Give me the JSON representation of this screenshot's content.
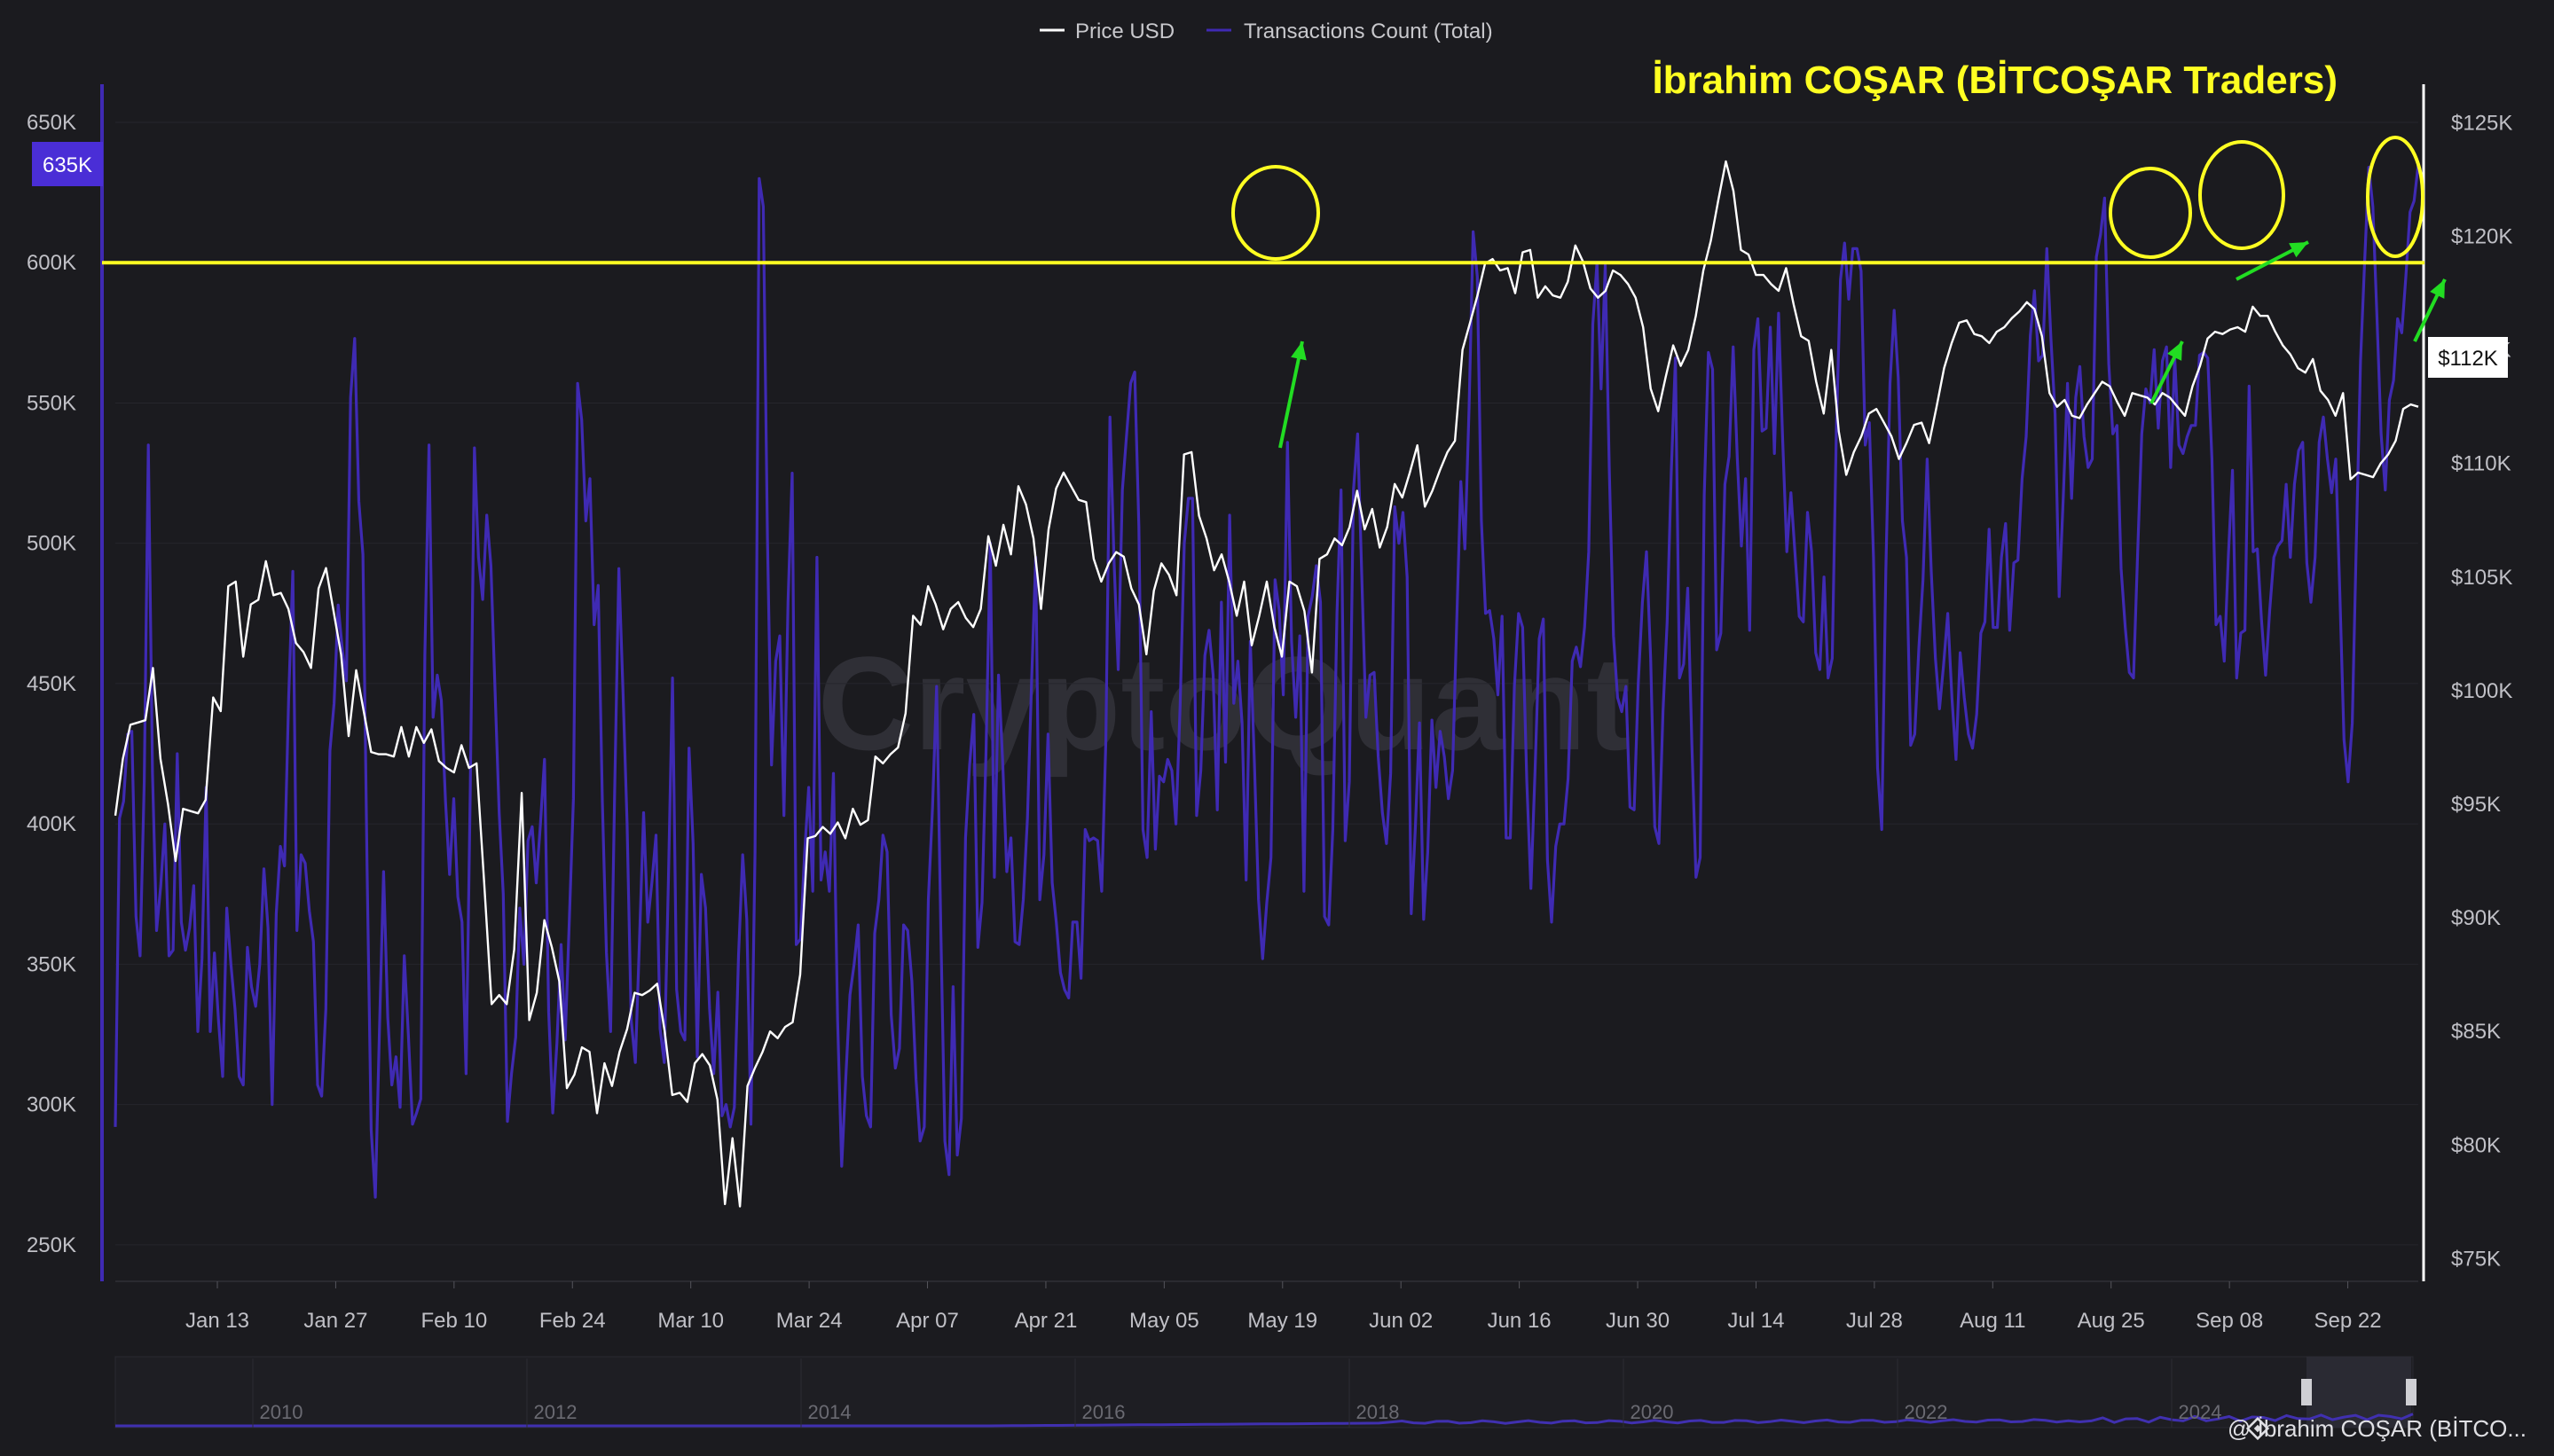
{
  "legend": {
    "price_label": "Price USD",
    "tx_label": "Transactions Count (Total)"
  },
  "annotation_title": "İbrahim COŞAR (BİTCOŞAR Traders)",
  "watermark": "CryptoQuant",
  "credit": "@ İbrahim COŞAR (BİTCO...",
  "badges": {
    "left_value": "635K",
    "right_value": "$112K"
  },
  "colors": {
    "background": "#1b1b1f",
    "tx_line": "#3f2ab3",
    "price_line": "#ffffff",
    "annotation": "#ffff22",
    "arrow": "#22dd22",
    "badge_left": "#4a2ed6"
  },
  "chart_data": {
    "type": "line",
    "x_ticks": [
      "Jan 13",
      "Jan 27",
      "Feb 10",
      "Feb 24",
      "Mar 10",
      "Mar 24",
      "Apr 07",
      "Apr 21",
      "May 05",
      "May 19",
      "Jun 02",
      "Jun 16",
      "Jun 30",
      "Jul 14",
      "Jul 28",
      "Aug 11",
      "Aug 25",
      "Sep 08",
      "Sep 22"
    ],
    "y_left": {
      "ticks": [
        "250K",
        "300K",
        "350K",
        "400K",
        "450K",
        "500K",
        "550K",
        "600K",
        "650K"
      ],
      "range": [
        237000,
        662000
      ]
    },
    "y_right": {
      "ticks": [
        "$75K",
        "$80K",
        "$85K",
        "$90K",
        "$95K",
        "$100K",
        "$105K",
        "$110K",
        "$115K",
        "$120K",
        "$125K"
      ],
      "range": [
        74000,
        126500
      ]
    },
    "horizontal_line": {
      "axis": "left",
      "value": 600000
    },
    "series": [
      {
        "name": "Transactions Count (Total)",
        "axis": "left",
        "values": [
          292000,
          402000,
          408000,
          432000,
          433000,
          367000,
          353000,
          415000,
          535000,
          418000,
          362000,
          378000,
          400000,
          353000,
          355000,
          425000,
          365000,
          355000,
          363000,
          378000,
          326000,
          352000,
          413000,
          326000,
          354000,
          330000,
          310000,
          370000,
          350000,
          334000,
          310000,
          307000,
          356000,
          342000,
          335000,
          350000,
          384000,
          363000,
          300000,
          368000,
          392000,
          385000,
          445000,
          490000,
          362000,
          389000,
          386000,
          369000,
          358000,
          307000,
          303000,
          334000,
          426000,
          443000,
          478000,
          462000,
          451000,
          552000,
          573000,
          515000,
          496000,
          384000,
          291000,
          267000,
          326000,
          383000,
          331000,
          307000,
          317000,
          299000,
          353000,
          325000,
          293000,
          297000,
          302000,
          460000,
          535000,
          438000,
          453000,
          444000,
          408000,
          382000,
          409000,
          374000,
          365000,
          311000,
          412000,
          534000,
          495000,
          480000,
          510000,
          492000,
          448000,
          404000,
          375000,
          294000,
          311000,
          324000,
          370000,
          350000,
          394000,
          399000,
          379000,
          400000,
          423000,
          333000,
          297000,
          322000,
          357000,
          323000,
          366000,
          409000,
          557000,
          544000,
          508000,
          523000,
          471000,
          485000,
          408000,
          354000,
          326000,
          412000,
          491000,
          448000,
          400000,
          330000,
          315000,
          358000,
          404000,
          365000,
          379000,
          396000,
          327000,
          315000,
          379000,
          452000,
          341000,
          326000,
          323000,
          427000,
          393000,
          317000,
          382000,
          370000,
          334000,
          311000,
          340000,
          296000,
          300000,
          292000,
          299000,
          353000,
          389000,
          366000,
          293000,
          390000,
          630000,
          620000,
          502000,
          421000,
          458000,
          467000,
          403000,
          479000,
          525000,
          357000,
          359000,
          389000,
          413000,
          376000,
          495000,
          380000,
          390000,
          376000,
          418000,
          330000,
          278000,
          310000,
          339000,
          350000,
          364000,
          310000,
          296000,
          292000,
          361000,
          373000,
          396000,
          390000,
          332000,
          313000,
          320000,
          364000,
          362000,
          344000,
          309000,
          287000,
          292000,
          373000,
          406000,
          449000,
          363000,
          287000,
          275000,
          342000,
          282000,
          295000,
          395000,
          421000,
          439000,
          356000,
          372000,
          427000,
          500000,
          381000,
          453000,
          422000,
          383000,
          395000,
          358000,
          357000,
          373000,
          402000,
          450000,
          495000,
          373000,
          389000,
          432000,
          379000,
          365000,
          347000,
          341000,
          338000,
          365000,
          365000,
          345000,
          398000,
          394000,
          395000,
          394000,
          376000,
          430000,
          545000,
          493000,
          455000,
          519000,
          538000,
          557000,
          561000,
          506000,
          398000,
          388000,
          440000,
          391000,
          417000,
          415000,
          423000,
          419000,
          400000,
          442000,
          500000,
          516000,
          516000,
          403000,
          419000,
          460000,
          469000,
          453000,
          405000,
          479000,
          422000,
          510000,
          443000,
          458000,
          436000,
          380000,
          465000,
          422000,
          373000,
          352000,
          372000,
          388000,
          487000,
          476000,
          446000,
          536000,
          465000,
          438000,
          467000,
          376000,
          474000,
          481000,
          492000,
          479000,
          367000,
          364000,
          398000,
          475000,
          519000,
          394000,
          415000,
          519000,
          539000,
          489000,
          438000,
          453000,
          454000,
          424000,
          404000,
          393000,
          418000,
          513000,
          500000,
          511000,
          488000,
          368000,
          399000,
          436000,
          366000,
          390000,
          437000,
          413000,
          433000,
          424000,
          409000,
          419000,
          471000,
          522000,
          498000,
          548000,
          611000,
          595000,
          508000,
          475000,
          476000,
          466000,
          446000,
          474000,
          395000,
          395000,
          449000,
          475000,
          470000,
          415000,
          377000,
          419000,
          466000,
          473000,
          387000,
          365000,
          392000,
          400000,
          400000,
          416000,
          458000,
          463000,
          456000,
          470000,
          497000,
          578000,
          600000,
          555000,
          599000,
          526000,
          467000,
          445000,
          440000,
          449000,
          406000,
          405000,
          450000,
          479000,
          497000,
          459000,
          399000,
          393000,
          440000,
          472000,
          525000,
          566000,
          452000,
          457000,
          484000,
          428000,
          381000,
          388000,
          517000,
          568000,
          562000,
          462000,
          468000,
          521000,
          531000,
          570000,
          530000,
          499000,
          523000,
          469000,
          569000,
          580000,
          540000,
          541000,
          577000,
          532000,
          582000,
          537000,
          497000,
          518000,
          496000,
          474000,
          472000,
          511000,
          497000,
          461000,
          455000,
          488000,
          452000,
          459000,
          540000,
          594000,
          607000,
          587000,
          605000,
          605000,
          597000,
          535000,
          543000,
          495000,
          420000,
          398000,
          490000,
          557000,
          583000,
          559000,
          508000,
          495000,
          428000,
          432000,
          463000,
          487000,
          530000,
          490000,
          459000,
          441000,
          457000,
          475000,
          445000,
          423000,
          461000,
          445000,
          432000,
          427000,
          439000,
          468000,
          472000,
          505000,
          470000,
          470000,
          495000,
          507000,
          469000,
          493000,
          494000,
          523000,
          538000,
          574000,
          590000,
          565000,
          567000,
          605000,
          573000,
          546000,
          481000,
          517000,
          557000,
          516000,
          552000,
          563000,
          538000,
          527000,
          530000,
          602000,
          610000,
          623000,
          564000,
          539000,
          542000,
          491000,
          470000,
          454000,
          452000,
          496000,
          539000,
          555000,
          550000,
          569000,
          541000,
          565000,
          570000,
          527000,
          566000,
          535000,
          532000,
          538000,
          542000,
          542000,
          567000,
          568000,
          566000,
          530000,
          471000,
          474000,
          458000,
          496000,
          526000,
          452000,
          468000,
          469000,
          556000,
          497000,
          498000,
          473000,
          453000,
          476000,
          495000,
          499000,
          501000,
          521000,
          495000,
          521000,
          533000,
          536000,
          493000,
          479000,
          495000,
          536000,
          545000,
          530000,
          518000,
          530000,
          482000,
          430000,
          415000,
          436000,
          501000,
          565000,
          600000,
          634000,
          620000,
          580000,
          539000,
          519000,
          551000,
          558000,
          580000,
          575000,
          595000,
          618000,
          622000,
          635000
        ]
      },
      {
        "name": "Price USD",
        "axis": "right",
        "values": [
          94500,
          97000,
          98500,
          98600,
          98700,
          101000,
          97000,
          95000,
          92500,
          94800,
          94700,
          94600,
          95200,
          99700,
          99100,
          104600,
          104800,
          101500,
          103800,
          104000,
          105700,
          104200,
          104300,
          103600,
          102100,
          101700,
          101000,
          104500,
          105400,
          103500,
          101600,
          98000,
          100900,
          99100,
          97300,
          97200,
          97200,
          97100,
          98400,
          97100,
          98400,
          97700,
          98300,
          96900,
          96600,
          96400,
          97600,
          96600,
          96800,
          91600,
          86200,
          86600,
          86200,
          88600,
          95500,
          85500,
          86700,
          89900,
          88700,
          87200,
          82500,
          83100,
          84300,
          84100,
          81400,
          83600,
          82600,
          84100,
          85100,
          86700,
          86600,
          86800,
          87100,
          85000,
          82200,
          82300,
          81900,
          83600,
          84000,
          83500,
          82000,
          77400,
          80300,
          77300,
          82600,
          83400,
          84100,
          85000,
          84700,
          85200,
          85400,
          87500,
          93500,
          93600,
          94000,
          93700,
          94200,
          93500,
          94800,
          94100,
          94300,
          97100,
          96800,
          97200,
          97500,
          99000,
          103300,
          102900,
          104600,
          103800,
          102700,
          103600,
          103900,
          103200,
          102800,
          103600,
          106800,
          105500,
          107300,
          106000,
          109000,
          108200,
          106700,
          103600,
          107100,
          108900,
          109600,
          109000,
          108400,
          108300,
          105800,
          104800,
          105600,
          106100,
          105900,
          104500,
          103800,
          101600,
          104400,
          105600,
          105100,
          104200,
          110400,
          110500,
          107700,
          106700,
          105300,
          106000,
          104800,
          103300,
          104800,
          102000,
          103300,
          104800,
          102800,
          101500,
          104800,
          104600,
          103500,
          100800,
          105800,
          106000,
          106700,
          106400,
          107200,
          108800,
          107100,
          108000,
          106300,
          107200,
          109100,
          108500,
          109600,
          110800,
          108100,
          108800,
          109700,
          110500,
          111000,
          115000,
          116200,
          117400,
          118800,
          119000,
          118500,
          118600,
          117500,
          119300,
          119400,
          117300,
          117800,
          117400,
          117300,
          118000,
          119600,
          118900,
          117700,
          117300,
          117600,
          118500,
          118300,
          117900,
          117300,
          116000,
          113300,
          112300,
          113800,
          115200,
          114300,
          115000,
          116500,
          118500,
          119800,
          121600,
          123300,
          122000,
          119400,
          119200,
          118300,
          118300,
          117900,
          117600,
          118600,
          117000,
          115600,
          115400,
          113600,
          112200,
          115000,
          111400,
          109500,
          110500,
          111200,
          112200,
          112400,
          111800,
          111200,
          110200,
          110900,
          111700,
          111800,
          110900,
          112500,
          114200,
          115300,
          116200,
          116300,
          115700,
          115600,
          115300,
          115800,
          116000,
          116400,
          116700,
          117100,
          116800,
          115600,
          113100,
          112500,
          112800,
          112100,
          112000,
          112600,
          113100,
          113600,
          113400,
          112700,
          112100,
          113100,
          113000,
          112900,
          112600,
          113100,
          112900,
          112500,
          112100,
          113400,
          114300,
          115500,
          115800,
          115700,
          115900,
          116000,
          115800,
          116900,
          116500,
          116500,
          115800,
          115200,
          114800,
          114200,
          114000,
          114600,
          113200,
          112800,
          112100,
          113100,
          109300,
          109600,
          109500,
          109400,
          110000,
          110400,
          111000,
          112400,
          112600,
          112500
        ]
      }
    ],
    "annotations": {
      "circles": [
        "May 19 peak",
        "Aug 29 peak",
        "Sep 08 peak",
        "Sep 28 peak"
      ],
      "arrows": 4
    },
    "navigator_years": [
      "2010",
      "2012",
      "2014",
      "2016",
      "2018",
      "2020",
      "2022",
      "2024"
    ]
  }
}
